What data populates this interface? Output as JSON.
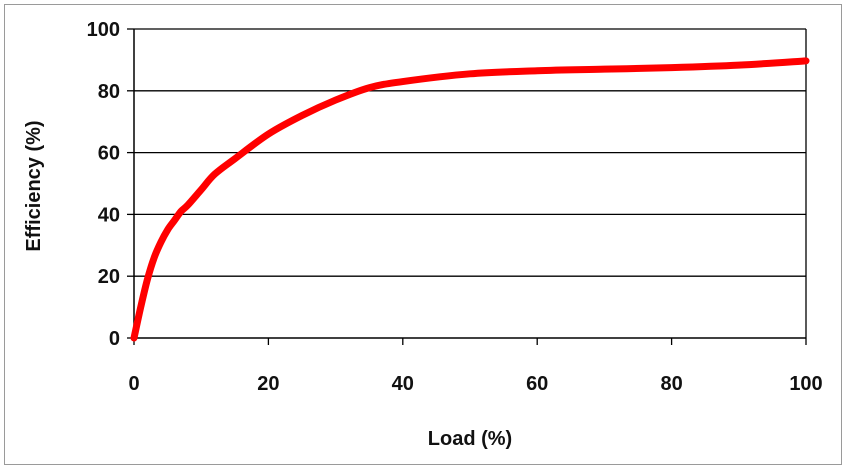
{
  "chart_data": {
    "type": "line",
    "title": "",
    "xlabel": "Load  (%)",
    "ylabel": "Efficiency (%)",
    "xlim": [
      0,
      100
    ],
    "ylim": [
      0,
      100
    ],
    "xticks": [
      0,
      20,
      40,
      60,
      80,
      100
    ],
    "yticks": [
      0,
      20,
      40,
      60,
      80,
      100
    ],
    "grid": "horizontal",
    "legend": "none",
    "series": [
      {
        "color": "#ff0000",
        "x": [
          0,
          1,
          2,
          3,
          4,
          5,
          6,
          7,
          8,
          10,
          12,
          15,
          20,
          25,
          30,
          35,
          40,
          50,
          60,
          70,
          80,
          90,
          100
        ],
        "y": [
          0,
          10,
          19,
          26,
          31,
          35,
          38,
          41,
          43,
          48,
          53,
          58,
          66,
          72,
          77,
          81,
          83,
          85.5,
          86.5,
          87,
          87.5,
          88.3,
          89.7
        ]
      }
    ]
  }
}
